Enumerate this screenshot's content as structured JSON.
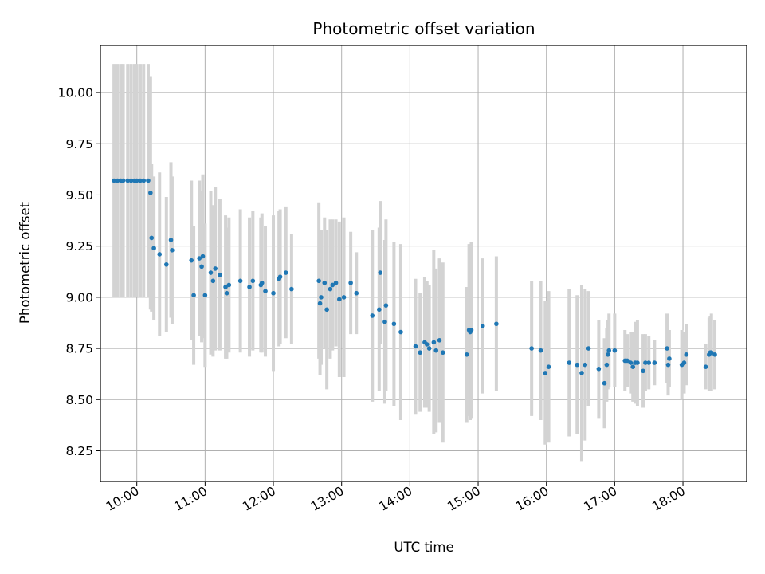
{
  "chart_data": {
    "type": "scatter",
    "title": "Photometric offset variation",
    "xlabel": "UTC time",
    "ylabel": "Photometric offset",
    "x_ticks": [
      "10:00",
      "11:00",
      "12:00",
      "13:00",
      "14:00",
      "15:00",
      "16:00",
      "17:00",
      "18:00"
    ],
    "y_ticks": [
      "8.25",
      "8.50",
      "8.75",
      "9.00",
      "9.25",
      "9.50",
      "9.75",
      "10.00"
    ],
    "xlim": [
      "09:28",
      "18:56"
    ],
    "ylim": [
      8.1,
      10.23
    ],
    "grid": true,
    "colors": {
      "point": "#1f77b4",
      "errorbar": "#d3d3d3",
      "grid": "#b0b0b0"
    },
    "series": [
      {
        "error_bars": true,
        "points": [
          {
            "x": "09:40",
            "y": 9.57,
            "yerr": 0.57
          },
          {
            "x": "09:43",
            "y": 9.57,
            "yerr": 0.57
          },
          {
            "x": "09:46",
            "y": 9.57,
            "yerr": 0.57
          },
          {
            "x": "09:48",
            "y": 9.57,
            "yerr": 0.57
          },
          {
            "x": "09:52",
            "y": 9.57,
            "yerr": 0.57
          },
          {
            "x": "09:55",
            "y": 9.57,
            "yerr": 0.57
          },
          {
            "x": "09:58",
            "y": 9.57,
            "yerr": 0.57
          },
          {
            "x": "10:00",
            "y": 9.57,
            "yerr": 0.57
          },
          {
            "x": "10:03",
            "y": 9.57,
            "yerr": 0.57
          },
          {
            "x": "10:06",
            "y": 9.57,
            "yerr": 0.57
          },
          {
            "x": "10:10",
            "y": 9.57,
            "yerr": 0.57
          },
          {
            "x": "10:12",
            "y": 9.51,
            "yerr": 0.57
          },
          {
            "x": "10:13",
            "y": 9.29,
            "yerr": 0.36
          },
          {
            "x": "10:15",
            "y": 9.24,
            "yerr": 0.35
          },
          {
            "x": "10:20",
            "y": 9.21,
            "yerr": 0.4
          },
          {
            "x": "10:26",
            "y": 9.16,
            "yerr": 0.33
          },
          {
            "x": "10:30",
            "y": 9.28,
            "yerr": 0.38
          },
          {
            "x": "10:31",
            "y": 9.23,
            "yerr": 0.36
          },
          {
            "x": "10:48",
            "y": 9.18,
            "yerr": 0.39
          },
          {
            "x": "10:50",
            "y": 9.01,
            "yerr": 0.34
          },
          {
            "x": "10:55",
            "y": 9.19,
            "yerr": 0.38
          },
          {
            "x": "10:57",
            "y": 9.15,
            "yerr": 0.37
          },
          {
            "x": "10:58",
            "y": 9.2,
            "yerr": 0.4
          },
          {
            "x": "11:00",
            "y": 9.01,
            "yerr": 0.35
          },
          {
            "x": "11:05",
            "y": 9.12,
            "yerr": 0.4
          },
          {
            "x": "11:07",
            "y": 9.08,
            "yerr": 0.37
          },
          {
            "x": "11:09",
            "y": 9.14,
            "yerr": 0.4
          },
          {
            "x": "11:13",
            "y": 9.11,
            "yerr": 0.37
          },
          {
            "x": "11:18",
            "y": 9.05,
            "yerr": 0.35
          },
          {
            "x": "11:19",
            "y": 9.02,
            "yerr": 0.32
          },
          {
            "x": "11:21",
            "y": 9.06,
            "yerr": 0.33
          },
          {
            "x": "11:31",
            "y": 9.08,
            "yerr": 0.35
          },
          {
            "x": "11:39",
            "y": 9.05,
            "yerr": 0.34
          },
          {
            "x": "11:42",
            "y": 9.08,
            "yerr": 0.34
          },
          {
            "x": "11:49",
            "y": 9.06,
            "yerr": 0.33
          },
          {
            "x": "11:50",
            "y": 9.07,
            "yerr": 0.34
          },
          {
            "x": "11:53",
            "y": 9.03,
            "yerr": 0.32
          },
          {
            "x": "12:00",
            "y": 9.02,
            "yerr": 0.38
          },
          {
            "x": "12:05",
            "y": 9.09,
            "yerr": 0.33
          },
          {
            "x": "12:06",
            "y": 9.1,
            "yerr": 0.33
          },
          {
            "x": "12:11",
            "y": 9.12,
            "yerr": 0.32
          },
          {
            "x": "12:16",
            "y": 9.04,
            "yerr": 0.27
          },
          {
            "x": "12:40",
            "y": 9.08,
            "yerr": 0.38
          },
          {
            "x": "12:41",
            "y": 8.97,
            "yerr": 0.35
          },
          {
            "x": "12:42",
            "y": 9.0,
            "yerr": 0.33
          },
          {
            "x": "12:45",
            "y": 9.07,
            "yerr": 0.32
          },
          {
            "x": "12:47",
            "y": 8.94,
            "yerr": 0.39
          },
          {
            "x": "12:50",
            "y": 9.04,
            "yerr": 0.34
          },
          {
            "x": "12:52",
            "y": 9.06,
            "yerr": 0.32
          },
          {
            "x": "12:55",
            "y": 9.07,
            "yerr": 0.31
          },
          {
            "x": "12:58",
            "y": 8.99,
            "yerr": 0.38
          },
          {
            "x": "13:02",
            "y": 9.0,
            "yerr": 0.39
          },
          {
            "x": "13:08",
            "y": 9.07,
            "yerr": 0.25
          },
          {
            "x": "13:13",
            "y": 9.02,
            "yerr": 0.2
          },
          {
            "x": "13:27",
            "y": 8.91,
            "yerr": 0.42
          },
          {
            "x": "13:33",
            "y": 8.94,
            "yerr": 0.4
          },
          {
            "x": "13:34",
            "y": 9.12,
            "yerr": 0.35
          },
          {
            "x": "13:38",
            "y": 8.88,
            "yerr": 0.4
          },
          {
            "x": "13:39",
            "y": 8.96,
            "yerr": 0.42
          },
          {
            "x": "13:46",
            "y": 8.87,
            "yerr": 0.4
          },
          {
            "x": "13:52",
            "y": 8.83,
            "yerr": 0.43
          },
          {
            "x": "14:05",
            "y": 8.76,
            "yerr": 0.33
          },
          {
            "x": "14:09",
            "y": 8.73,
            "yerr": 0.29
          },
          {
            "x": "14:13",
            "y": 8.78,
            "yerr": 0.32
          },
          {
            "x": "14:15",
            "y": 8.77,
            "yerr": 0.31
          },
          {
            "x": "14:17",
            "y": 8.75,
            "yerr": 0.31
          },
          {
            "x": "14:21",
            "y": 8.78,
            "yerr": 0.45
          },
          {
            "x": "14:23",
            "y": 8.74,
            "yerr": 0.4
          },
          {
            "x": "14:26",
            "y": 8.79,
            "yerr": 0.4
          },
          {
            "x": "14:29",
            "y": 8.73,
            "yerr": 0.44
          },
          {
            "x": "14:50",
            "y": 8.72,
            "yerr": 0.33
          },
          {
            "x": "14:52",
            "y": 8.84,
            "yerr": 0.42
          },
          {
            "x": "14:53",
            "y": 8.83,
            "yerr": 0.43
          },
          {
            "x": "14:54",
            "y": 8.84,
            "yerr": 0.43
          },
          {
            "x": "15:04",
            "y": 8.86,
            "yerr": 0.33
          },
          {
            "x": "15:16",
            "y": 8.87,
            "yerr": 0.33
          },
          {
            "x": "15:47",
            "y": 8.75,
            "yerr": 0.33
          },
          {
            "x": "15:55",
            "y": 8.74,
            "yerr": 0.34
          },
          {
            "x": "15:59",
            "y": 8.63,
            "yerr": 0.35
          },
          {
            "x": "16:02",
            "y": 8.66,
            "yerr": 0.37
          },
          {
            "x": "16:20",
            "y": 8.68,
            "yerr": 0.36
          },
          {
            "x": "16:27",
            "y": 8.67,
            "yerr": 0.34
          },
          {
            "x": "16:31",
            "y": 8.63,
            "yerr": 0.43
          },
          {
            "x": "16:34",
            "y": 8.67,
            "yerr": 0.37
          },
          {
            "x": "16:37",
            "y": 8.75,
            "yerr": 0.28
          },
          {
            "x": "16:46",
            "y": 8.65,
            "yerr": 0.24
          },
          {
            "x": "16:51",
            "y": 8.58,
            "yerr": 0.22
          },
          {
            "x": "16:53",
            "y": 8.67,
            "yerr": 0.18
          },
          {
            "x": "16:54",
            "y": 8.72,
            "yerr": 0.17
          },
          {
            "x": "16:55",
            "y": 8.74,
            "yerr": 0.18
          },
          {
            "x": "17:00",
            "y": 8.74,
            "yerr": 0.18
          },
          {
            "x": "17:09",
            "y": 8.69,
            "yerr": 0.15
          },
          {
            "x": "17:11",
            "y": 8.69,
            "yerr": 0.13
          },
          {
            "x": "17:14",
            "y": 8.68,
            "yerr": 0.15
          },
          {
            "x": "17:16",
            "y": 8.66,
            "yerr": 0.17
          },
          {
            "x": "17:18",
            "y": 8.68,
            "yerr": 0.2
          },
          {
            "x": "17:20",
            "y": 8.68,
            "yerr": 0.21
          },
          {
            "x": "17:25",
            "y": 8.64,
            "yerr": 0.18
          },
          {
            "x": "17:27",
            "y": 8.68,
            "yerr": 0.14
          },
          {
            "x": "17:30",
            "y": 8.68,
            "yerr": 0.13
          },
          {
            "x": "17:35",
            "y": 8.68,
            "yerr": 0.11
          },
          {
            "x": "17:46",
            "y": 8.75,
            "yerr": 0.17
          },
          {
            "x": "17:47",
            "y": 8.67,
            "yerr": 0.15
          },
          {
            "x": "17:48",
            "y": 8.7,
            "yerr": 0.14
          },
          {
            "x": "17:59",
            "y": 8.67,
            "yerr": 0.17
          },
          {
            "x": "18:01",
            "y": 8.68,
            "yerr": 0.15
          },
          {
            "x": "18:03",
            "y": 8.72,
            "yerr": 0.15
          },
          {
            "x": "18:20",
            "y": 8.66,
            "yerr": 0.11
          },
          {
            "x": "18:23",
            "y": 8.72,
            "yerr": 0.18
          },
          {
            "x": "18:24",
            "y": 8.73,
            "yerr": 0.18
          },
          {
            "x": "18:25",
            "y": 8.73,
            "yerr": 0.19
          },
          {
            "x": "18:28",
            "y": 8.72,
            "yerr": 0.17
          }
        ]
      }
    ]
  }
}
